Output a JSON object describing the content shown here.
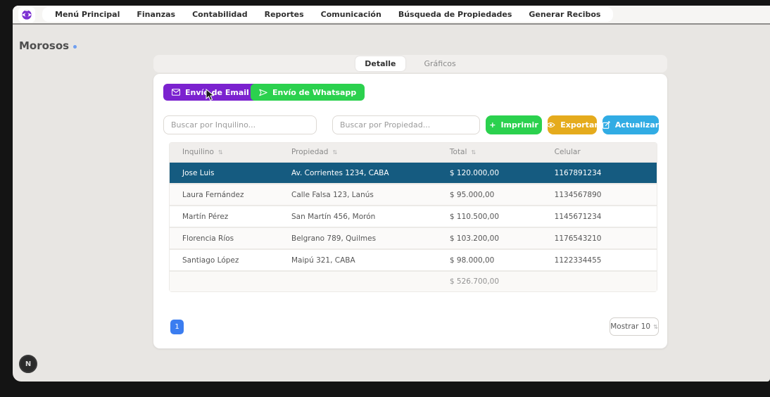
{
  "nav": {
    "items": [
      "Menú Principal",
      "Finanzas",
      "Contabilidad",
      "Reportes",
      "Comunicación",
      "Búsqueda de Propiedades",
      "Generar Recibos"
    ]
  },
  "page": {
    "title": "Morosos"
  },
  "tabs": {
    "detail": "Detalle",
    "charts": "Gráficos"
  },
  "toolbar": {
    "email_label": "Envío de Email",
    "whatsapp_label": "Envío de Whatsapp",
    "print_label": "Imprimir",
    "print_prefix": "+",
    "export_label": "Exportar",
    "update_label": "Actualizar"
  },
  "search": {
    "inquilino_placeholder": "Buscar por Inquilino...",
    "propiedad_placeholder": "Buscar por Propiedad..."
  },
  "table": {
    "columns": [
      "Inquilino",
      "Propiedad",
      "Total",
      "Celular"
    ],
    "sort_glyph": "⇅",
    "rows": [
      {
        "inquilino": "Jose Luis",
        "propiedad": "Av. Corrientes 1234, CABA",
        "total": "$ 120.000,00",
        "celular": "1167891234",
        "selected": true
      },
      {
        "inquilino": "Laura Fernández",
        "propiedad": "Calle Falsa 123, Lanús",
        "total": "$ 95.000,00",
        "celular": "1134567890",
        "selected": false
      },
      {
        "inquilino": "Martín Pérez",
        "propiedad": "San Martín 456, Morón",
        "total": "$ 110.500,00",
        "celular": "1145671234",
        "selected": false
      },
      {
        "inquilino": "Florencia Ríos",
        "propiedad": "Belgrano 789, Quilmes",
        "total": "$ 103.200,00",
        "celular": "1176543210",
        "selected": false
      },
      {
        "inquilino": "Santiago López",
        "propiedad": "Maipú 321, CABA",
        "total": "$ 98.000,00",
        "celular": "1122334455",
        "selected": false
      }
    ],
    "total_sum": "$ 526.700,00"
  },
  "pagination": {
    "current_page": "1",
    "page_size_label": "Mostrar 10",
    "page_size_glyph": "⇅"
  },
  "avatar": {
    "initial": "N"
  },
  "icons": {
    "logo": "eye-logo-icon",
    "email": "envelope-icon",
    "whatsapp": "send-icon",
    "export": "eye-icon",
    "update": "edit-icon"
  },
  "colors": {
    "purple_accent": "#7b22cf",
    "green_accent": "#2bd14e",
    "yellow_accent": "#e5ab1d",
    "blue_accent": "#31ace4",
    "selected_row": "#155b80",
    "pagination_blue": "#3b7df0",
    "frame_black": "#141414",
    "content_bg": "#e8e6e3"
  }
}
